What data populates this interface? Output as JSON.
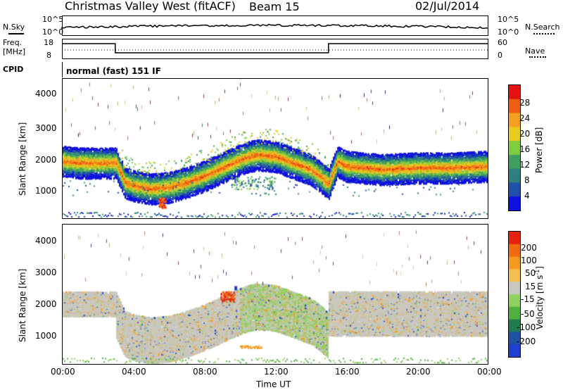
{
  "header": {
    "title": "Christmas Valley West (fitACF)",
    "beam": "Beam 15",
    "date": "02/Jul/2014"
  },
  "top_panels": {
    "nsky_label": "N.Sky",
    "nsky_ticks": [
      "10^5",
      "10^0"
    ],
    "nsearch_label": "N.Search",
    "nsearch_ticks": [
      "10^5",
      "10^0"
    ],
    "freq_label_line1": "Freq.",
    "freq_label_line2": "[MHz]",
    "freq_ticks": [
      "18",
      "8"
    ],
    "nave_label": "Nave",
    "nave_ticks": [
      "60",
      "0"
    ],
    "cpid_label": "CPID",
    "cpid_text": "normal (fast) 151 IF"
  },
  "colors": {
    "power_scale": [
      "#1010e0",
      "#1f4fa8",
      "#2f7f80",
      "#3f9f60",
      "#7fcc40",
      "#e8cc20",
      "#f5a020",
      "#f06010",
      "#e81010"
    ],
    "velocity_scale": [
      "#1f3fd0",
      "#2050a0",
      "#207a50",
      "#4fb040",
      "#90d060",
      "#c8c8c0",
      "#f2c050",
      "#f59a20",
      "#f06a10",
      "#e82010"
    ]
  },
  "chart_data": [
    {
      "type": "heatmap",
      "name": "power",
      "ylabel": "Slant Range [km]",
      "yticks": [
        "4000",
        "3000",
        "2000",
        "1000"
      ],
      "ylim": [
        200,
        4500
      ],
      "xlim": [
        "00:00",
        "24:00"
      ],
      "colorbar_label": "Power [dB]",
      "colorbar_ticks": [
        "28",
        "24",
        "20",
        "16",
        "12",
        "8",
        "4"
      ],
      "colorbar_range": [
        0,
        32
      ],
      "main_echo_band": {
        "time_h": [
          0,
          1,
          2,
          3,
          3.5,
          4,
          5,
          6,
          7,
          8,
          9,
          10,
          10.5,
          11,
          12,
          13,
          14,
          14.5,
          15,
          15.5,
          16,
          18,
          20,
          22,
          24
        ],
        "range_km": [
          2000,
          1950,
          1950,
          1950,
          1350,
          1250,
          1150,
          1200,
          1350,
          1550,
          1800,
          2050,
          2150,
          2200,
          2150,
          1950,
          1750,
          1550,
          1300,
          2000,
          1850,
          1750,
          1800,
          1800,
          1850
        ]
      }
    },
    {
      "type": "heatmap",
      "name": "velocity",
      "ylabel": "Slant Range [km]",
      "yticks": [
        "4000",
        "3000",
        "2000",
        "1000"
      ],
      "ylim": [
        200,
        4500
      ],
      "xlim": [
        "00:00",
        "24:00"
      ],
      "xlabel": "Time UT",
      "xticks": [
        "00:00",
        "04:00",
        "08:00",
        "12:00",
        "16:00",
        "20:00",
        "00:00"
      ],
      "colorbar_label": "Velocity [m s",
      "colorbar_label_sup": "-1",
      "colorbar_label_end": "]",
      "colorbar_ticks": [
        "200",
        "100",
        "50",
        "15",
        "-15",
        "-50",
        "-100",
        "-200"
      ],
      "colorbar_range": [
        -250,
        250
      ]
    }
  ]
}
